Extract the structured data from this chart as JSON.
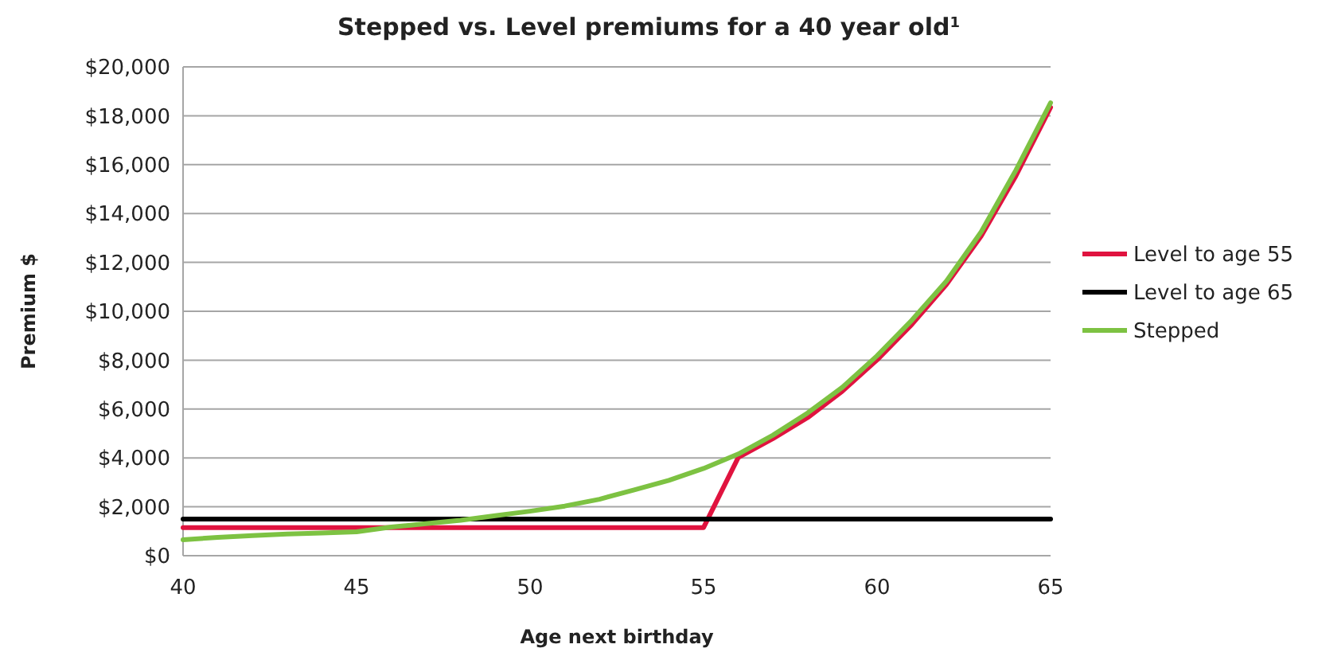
{
  "chart_data": {
    "type": "line",
    "title": "Stepped vs. Level premiums for a 40 year old$^{1}$",
    "xlabel": "Age next birthday",
    "ylabel": "Premium $",
    "x": [
      40,
      41,
      42,
      43,
      44,
      45,
      46,
      47,
      48,
      49,
      50,
      51,
      52,
      53,
      54,
      55,
      56,
      57,
      58,
      59,
      60,
      61,
      62,
      63,
      64,
      65
    ],
    "series": [
      {
        "name": "Level to age 55",
        "color": "#e0133f",
        "values": [
          1150,
          1150,
          1150,
          1150,
          1150,
          1150,
          1150,
          1150,
          1150,
          1150,
          1150,
          1150,
          1150,
          1150,
          1150,
          1150,
          4020,
          4790,
          5650,
          6730,
          8010,
          9460,
          11100,
          13080,
          15540,
          18340
        ]
      },
      {
        "name": "Level to age 65",
        "color": "#000000",
        "values": [
          1500,
          1500,
          1500,
          1500,
          1500,
          1500,
          1500,
          1500,
          1500,
          1500,
          1500,
          1500,
          1500,
          1500,
          1500,
          1500,
          1500,
          1500,
          1500,
          1500,
          1500,
          1500,
          1500,
          1500,
          1500,
          1500
        ]
      },
      {
        "name": "Stepped",
        "color": "#7dc242",
        "values": [
          650,
          750,
          820,
          890,
          930,
          980,
          1170,
          1310,
          1450,
          1640,
          1820,
          2030,
          2310,
          2690,
          3080,
          3570,
          4160,
          4930,
          5840,
          6890,
          8180,
          9630,
          11240,
          13250,
          15770,
          18530
        ]
      }
    ],
    "xlim": [
      40,
      65
    ],
    "xticks": [
      40,
      45,
      50,
      55,
      60,
      65
    ],
    "ylim": [
      0,
      20000
    ],
    "yticks": [
      {
        "value": 0,
        "label": "$0"
      },
      {
        "value": 2000,
        "label": "$2,000"
      },
      {
        "value": 4000,
        "label": "$4,000"
      },
      {
        "value": 6000,
        "label": "$6,000"
      },
      {
        "value": 8000,
        "label": "$8,000"
      },
      {
        "value": 10000,
        "label": "$10,000"
      },
      {
        "value": 12000,
        "label": "$12,000"
      },
      {
        "value": 14000,
        "label": "$14,000"
      },
      {
        "value": 16000,
        "label": "$16,000"
      },
      {
        "value": 18000,
        "label": "$18,000"
      },
      {
        "value": 20000,
        "label": "$20,000"
      }
    ],
    "grid": "y",
    "legend": "right",
    "marker": "none",
    "line_style": "solid"
  }
}
